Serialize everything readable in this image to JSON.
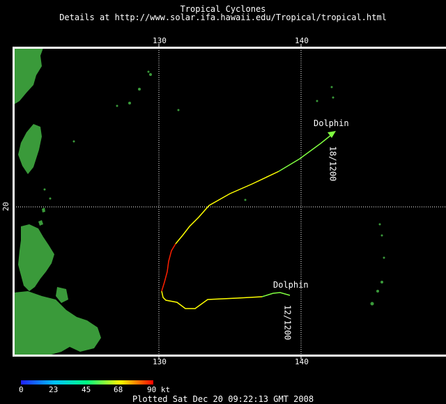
{
  "header": {
    "title": "Tropical Cyclones",
    "subtitle": "Details at http://www.solar.ifa.hawaii.edu/Tropical/tropical.html"
  },
  "axes": {
    "lon_labels": [
      "130",
      "140"
    ],
    "lat_labels": [
      "20"
    ]
  },
  "storms": [
    {
      "name": "Dolphin",
      "date_label": "18/1200",
      "position": "end-north"
    },
    {
      "name": "Dolphin",
      "date_label": "12/1200",
      "position": "start-south"
    }
  ],
  "legend": {
    "labels": [
      "0",
      "23",
      "45",
      "68",
      "90 kt"
    ],
    "colors": [
      "#2020ff",
      "#00c0ff",
      "#00ff80",
      "#ffff00",
      "#ff0000"
    ]
  },
  "footer": {
    "plotted": "Plotted Sat Dec 20 09:22:13 GMT 2008"
  },
  "colors": {
    "land": "#3a9a3a",
    "frame": "#ffffff",
    "grid": "#ffffff"
  }
}
